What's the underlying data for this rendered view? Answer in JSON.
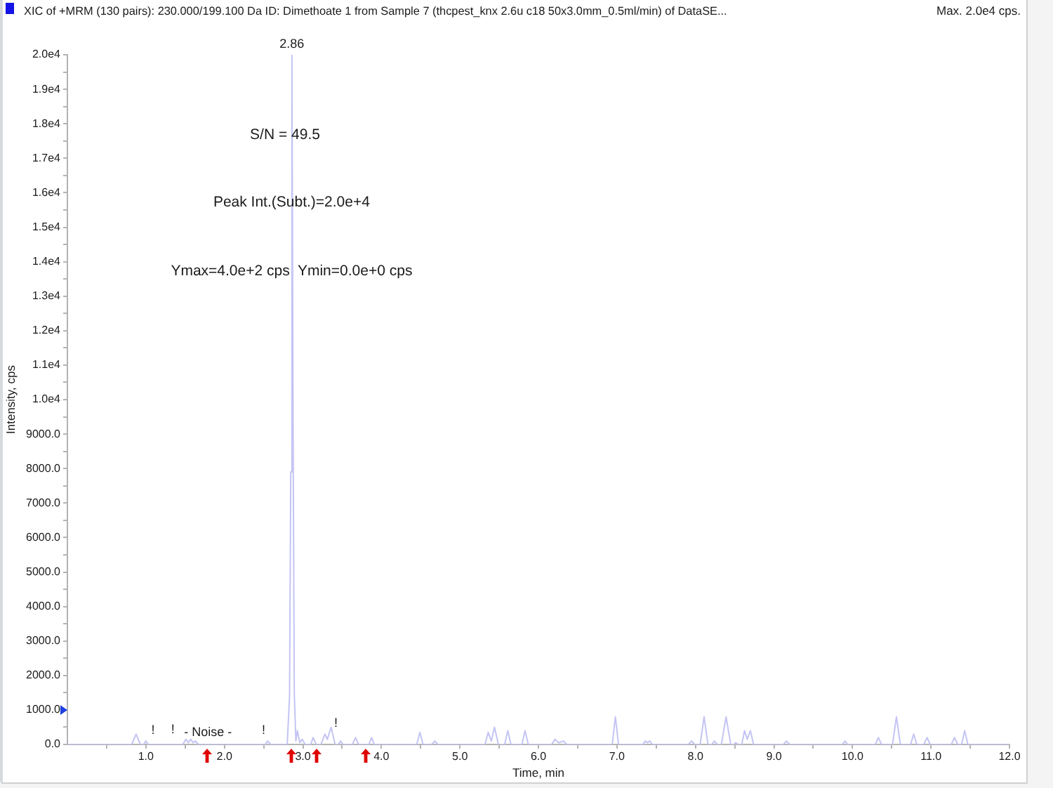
{
  "chart_data": {
    "type": "line",
    "title": "XIC of +MRM (130 pairs): 230.000/199.100 Da ID: Dimethoate 1 from Sample 7 (thcpest_knx 2.6u c18 50x3.0mm_0.5ml/min) of DataSE...",
    "subtitle": "Max. 2.0e4 cps.",
    "xlabel": "Time, min",
    "ylabel": "Intensity, cps",
    "x": [
      0,
      0.82,
      0.875,
      0.93,
      0.97,
      1.0,
      1.03,
      1.47,
      1.51,
      1.54,
      1.57,
      1.6,
      1.63,
      1.67,
      2.52,
      2.55,
      2.59,
      2.8,
      2.83,
      2.845,
      2.86,
      2.875,
      2.89,
      2.91,
      2.93,
      2.96,
      2.99,
      3.03,
      3.1,
      3.13,
      3.17,
      3.23,
      3.28,
      3.31,
      3.36,
      3.41,
      3.45,
      3.48,
      3.51,
      3.63,
      3.67,
      3.71,
      3.84,
      3.875,
      3.91,
      4.45,
      4.49,
      4.53,
      4.64,
      4.68,
      4.72,
      5.32,
      5.36,
      5.4,
      5.44,
      5.49,
      5.57,
      5.61,
      5.65,
      5.79,
      5.83,
      5.87,
      6.17,
      6.21,
      6.26,
      6.32,
      6.36,
      6.94,
      6.98,
      7.02,
      7.33,
      7.36,
      7.39,
      7.42,
      7.45,
      7.91,
      7.95,
      7.99,
      8.06,
      8.11,
      8.16,
      8.21,
      8.24,
      8.28,
      8.33,
      8.39,
      8.45,
      8.49,
      8.51,
      8.55,
      8.59,
      8.625,
      8.66,
      8.7,
      8.74,
      9.12,
      9.16,
      9.2,
      9.87,
      9.905,
      9.94,
      10.29,
      10.33,
      10.37,
      10.51,
      10.56,
      10.61,
      10.74,
      10.78,
      10.82,
      10.91,
      10.95,
      10.99,
      11.26,
      11.3,
      11.34,
      11.39,
      11.43,
      11.47,
      12
    ],
    "values": [
      0,
      0,
      300,
      0,
      0,
      100,
      0,
      0,
      150,
      50,
      150,
      50,
      100,
      0,
      0,
      100,
      0,
      0,
      1400,
      7900,
      20000,
      9000,
      1500,
      100,
      400,
      50,
      150,
      0,
      0,
      200,
      0,
      0,
      300,
      150,
      500,
      0,
      0,
      100,
      0,
      0,
      200,
      0,
      0,
      200,
      0,
      0,
      350,
      0,
      0,
      100,
      0,
      0,
      350,
      100,
      500,
      0,
      0,
      400,
      0,
      0,
      400,
      0,
      0,
      150,
      50,
      100,
      0,
      0,
      800,
      0,
      0,
      100,
      50,
      100,
      0,
      0,
      100,
      0,
      0,
      800,
      0,
      0,
      100,
      0,
      0,
      800,
      0,
      0,
      50,
      0,
      0,
      400,
      150,
      400,
      0,
      0,
      100,
      0,
      0,
      100,
      0,
      0,
      200,
      0,
      0,
      800,
      0,
      0,
      300,
      0,
      0,
      200,
      0,
      0,
      200,
      0,
      0,
      400,
      0,
      0
    ],
    "color": "#c4c4f4",
    "xlim": [
      0,
      12
    ],
    "xticks": [
      {
        "value": 0.5,
        "label": null
      },
      {
        "value": 1,
        "label": "1.0"
      },
      {
        "value": 1.5,
        "label": null
      },
      {
        "value": 2,
        "label": "2.0"
      },
      {
        "value": 2.5,
        "label": null
      },
      {
        "value": 3,
        "label": "3.0"
      },
      {
        "value": 3.5,
        "label": null
      },
      {
        "value": 4,
        "label": "4.0"
      },
      {
        "value": 4.5,
        "label": null
      },
      {
        "value": 5,
        "label": "5.0"
      },
      {
        "value": 5.5,
        "label": null
      },
      {
        "value": 6,
        "label": "6.0"
      },
      {
        "value": 6.5,
        "label": null
      },
      {
        "value": 7,
        "label": "7.0"
      },
      {
        "value": 7.5,
        "label": null
      },
      {
        "value": 8,
        "label": "8.0"
      },
      {
        "value": 8.5,
        "label": null
      },
      {
        "value": 9,
        "label": "9.0"
      },
      {
        "value": 9.5,
        "label": null
      },
      {
        "value": 10,
        "label": "10.0"
      },
      {
        "value": 10.5,
        "label": null
      },
      {
        "value": 11,
        "label": "11.0"
      },
      {
        "value": 11.5,
        "label": null
      },
      {
        "value": 12,
        "label": "12.0"
      }
    ],
    "ylim": [
      0,
      20000
    ],
    "yticks": [
      {
        "value": 0,
        "label": "0.0"
      },
      {
        "value": 500,
        "label": null
      },
      {
        "value": 1000,
        "label": "1000.0"
      },
      {
        "value": 1500,
        "label": null
      },
      {
        "value": 2000,
        "label": "2000.0"
      },
      {
        "value": 2500,
        "label": null
      },
      {
        "value": 3000,
        "label": "3000.0"
      },
      {
        "value": 3500,
        "label": null
      },
      {
        "value": 4000,
        "label": "4000.0"
      },
      {
        "value": 4500,
        "label": null
      },
      {
        "value": 5000,
        "label": "5000.0"
      },
      {
        "value": 5500,
        "label": null
      },
      {
        "value": 6000,
        "label": "6000.0"
      },
      {
        "value": 6500,
        "label": null
      },
      {
        "value": 7000,
        "label": "7000.0"
      },
      {
        "value": 7500,
        "label": null
      },
      {
        "value": 8000,
        "label": "8000.0"
      },
      {
        "value": 8500,
        "label": null
      },
      {
        "value": 9000,
        "label": "9000.0"
      },
      {
        "value": 9500,
        "label": null
      },
      {
        "value": 10000,
        "label": "1.0e4"
      },
      {
        "value": 10500,
        "label": null
      },
      {
        "value": 11000,
        "label": "1.1e4"
      },
      {
        "value": 11500,
        "label": null
      },
      {
        "value": 12000,
        "label": "1.2e4"
      },
      {
        "value": 12500,
        "label": null
      },
      {
        "value": 13000,
        "label": "1.3e4"
      },
      {
        "value": 13500,
        "label": null
      },
      {
        "value": 14000,
        "label": "1.4e4"
      },
      {
        "value": 14500,
        "label": null
      },
      {
        "value": 15000,
        "label": "1.5e4"
      },
      {
        "value": 15500,
        "label": null
      },
      {
        "value": 16000,
        "label": "1.6e4"
      },
      {
        "value": 16500,
        "label": null
      },
      {
        "value": 17000,
        "label": "1.7e4"
      },
      {
        "value": 17500,
        "label": null
      },
      {
        "value": 18000,
        "label": "1.8e4"
      },
      {
        "value": 18500,
        "label": null
      },
      {
        "value": 19000,
        "label": "1.9e4"
      },
      {
        "value": 19500,
        "label": null
      },
      {
        "value": 20000,
        "label": "2.0e4"
      }
    ],
    "grid": false,
    "legend": false,
    "marker": "none",
    "line_style": "solid",
    "annotations": [
      {
        "text": "2.86",
        "x": 2.86,
        "y": 20000
      },
      "S/N = 49.5",
      "Peak Int.(Subt.)=2.0e+4",
      "Ymax=4.0e+2 cps  Ymin=0.0e+0 cps",
      {
        "text": "!",
        "x": 1.09,
        "y": 100
      },
      "!",
      {
        "text": "- Noise -",
        "x": 1.79,
        "y": 50
      },
      {
        "text": "!",
        "x": 2.5,
        "y": 100
      },
      {
        "text": "!",
        "x": 3.42,
        "y": 300
      }
    ]
  }
}
